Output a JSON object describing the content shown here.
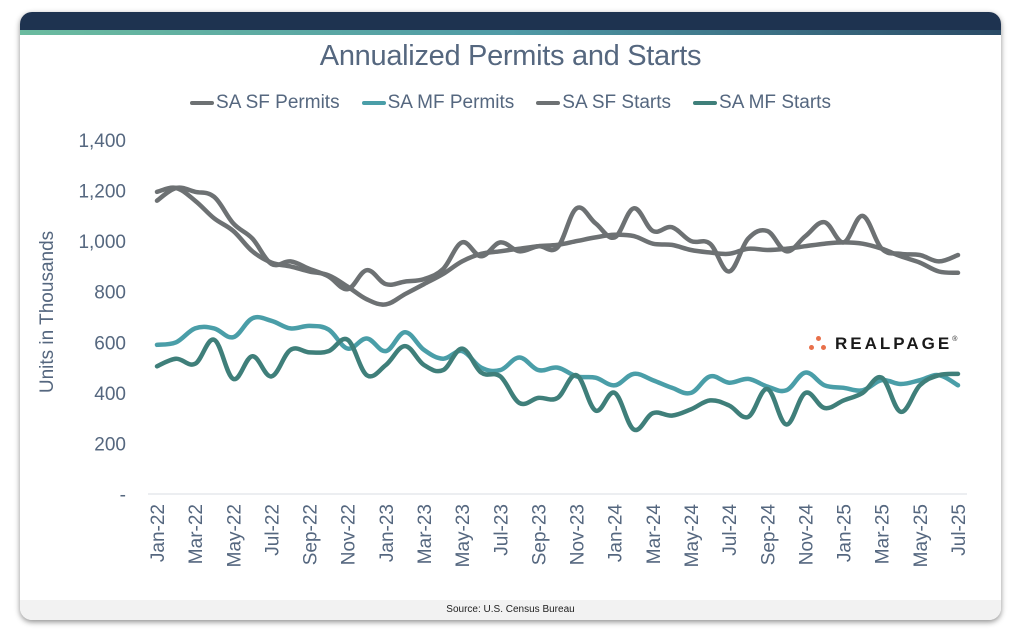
{
  "card": {
    "footer_source": "Source: U.S. Census Bureau",
    "logo_text": "REALPAGE",
    "logo_mark": "®"
  },
  "chart_data": {
    "type": "line",
    "title": "Annualized Permits and Starts",
    "xlabel": "",
    "ylabel": "Units in Thousands",
    "ylim": [
      0,
      1400
    ],
    "yticks": [
      0,
      200,
      400,
      600,
      800,
      1000,
      1200,
      1400
    ],
    "ytick_labels": [
      "-",
      "200",
      "400",
      "600",
      "800",
      "1,000",
      "1,200",
      "1,400"
    ],
    "grid": false,
    "legend_position": "top-center",
    "x": [
      "Jan-22",
      "Feb-22",
      "Mar-22",
      "Apr-22",
      "May-22",
      "Jun-22",
      "Jul-22",
      "Aug-22",
      "Sep-22",
      "Oct-22",
      "Nov-22",
      "Dec-22",
      "Jan-23",
      "Feb-23",
      "Mar-23",
      "Apr-23",
      "May-23",
      "Jun-23",
      "Jul-23",
      "Aug-23",
      "Sep-23",
      "Oct-23",
      "Nov-23",
      "Dec-23",
      "Jan-24",
      "Feb-24",
      "Mar-24",
      "Apr-24",
      "May-24",
      "Jun-24",
      "Jul-24",
      "Aug-24",
      "Sep-24",
      "Oct-24",
      "Nov-24",
      "Dec-24",
      "Jan-25",
      "Feb-25",
      "Mar-25",
      "Apr-25",
      "May-25",
      "Jun-25",
      "Jul-25"
    ],
    "xtick_labels": [
      "Jan-22",
      "Mar-22",
      "May-22",
      "Jul-22",
      "Sep-22",
      "Nov-22",
      "Jan-23",
      "Mar-23",
      "May-23",
      "Jul-23",
      "Sep-23",
      "Nov-23",
      "Jan-24",
      "Mar-24",
      "May-24",
      "Jul-24",
      "Sep-24",
      "Nov-24",
      "Jan-25",
      "Mar-25",
      "May-25",
      "Jul-25"
    ],
    "series": [
      {
        "name": "SA SF Permits",
        "color": "#6d7173",
        "values": [
          1195,
          1210,
          1160,
          1090,
          1040,
          960,
          915,
          900,
          880,
          865,
          820,
          770,
          750,
          790,
          830,
          870,
          920,
          950,
          960,
          970,
          980,
          985,
          1000,
          1015,
          1025,
          1020,
          990,
          985,
          965,
          955,
          950,
          970,
          965,
          970,
          980,
          990,
          995,
          990,
          970,
          940,
          915,
          880,
          875
        ]
      },
      {
        "name": "SA MF Permits",
        "color": "#4a9ea8",
        "values": [
          590,
          600,
          655,
          655,
          620,
          695,
          685,
          655,
          665,
          650,
          575,
          615,
          565,
          640,
          570,
          535,
          565,
          500,
          490,
          540,
          490,
          500,
          465,
          460,
          430,
          475,
          450,
          420,
          400,
          465,
          440,
          455,
          425,
          410,
          480,
          430,
          420,
          410,
          450,
          435,
          450,
          470,
          430
        ]
      },
      {
        "name": "SA SF Starts",
        "color": "#6d7173",
        "values": [
          1160,
          1210,
          1195,
          1175,
          1070,
          1010,
          910,
          920,
          890,
          860,
          810,
          885,
          830,
          840,
          850,
          890,
          995,
          940,
          995,
          960,
          980,
          975,
          1130,
          1070,
          1015,
          1130,
          1040,
          1055,
          1000,
          990,
          880,
          1010,
          1040,
          960,
          1020,
          1075,
          995,
          1100,
          970,
          950,
          945,
          920,
          945
        ]
      },
      {
        "name": "SA MF Starts",
        "color": "#3f7f7a",
        "values": [
          505,
          535,
          515,
          610,
          455,
          545,
          465,
          570,
          560,
          565,
          610,
          470,
          510,
          585,
          510,
          490,
          575,
          480,
          465,
          360,
          380,
          380,
          470,
          330,
          400,
          255,
          320,
          310,
          335,
          370,
          350,
          305,
          415,
          275,
          400,
          340,
          370,
          400,
          460,
          325,
          430,
          470,
          475
        ]
      }
    ]
  }
}
